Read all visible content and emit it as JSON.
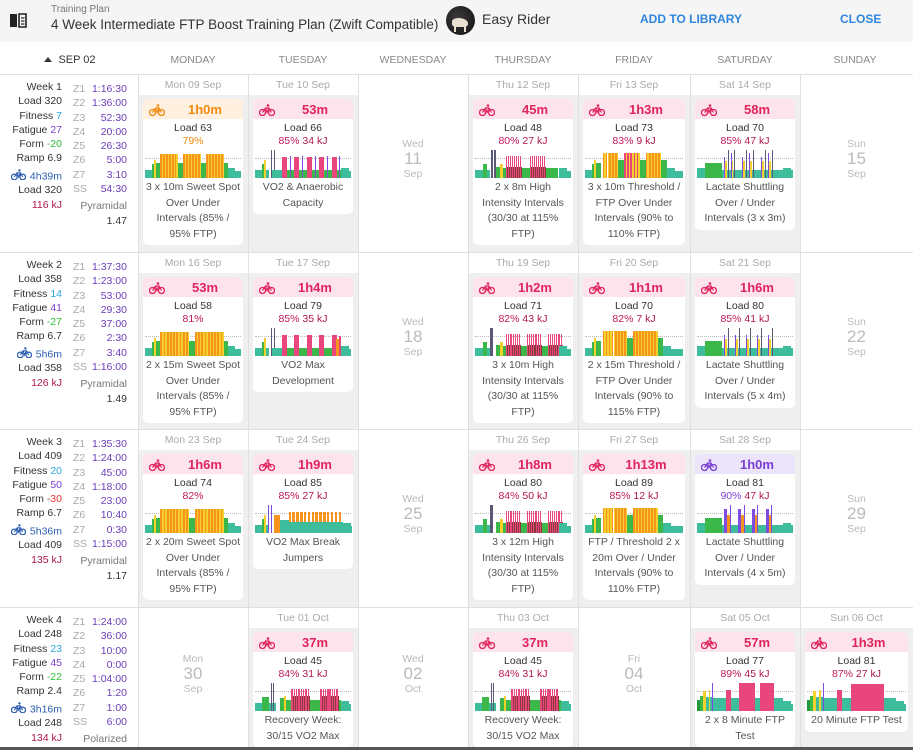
{
  "header": {
    "subtitle": "Training Plan",
    "title": "4 Week Intermediate FTP Boost Training Plan (Zwift Compatible)",
    "user": "Easy Rider",
    "add_label": "ADD TO LIBRARY",
    "close_label": "CLOSE"
  },
  "columns": {
    "week_start": "SEP 02",
    "days": [
      "MONDAY",
      "TUESDAY",
      "WEDNESDAY",
      "THURSDAY",
      "FRIDAY",
      "SATURDAY",
      "SUNDAY"
    ]
  },
  "colors": {
    "accent": "#2f86de",
    "pink": "#e0245e",
    "orange": "#f08a10",
    "purple": "#7b3fd0",
    "zone_value": "#6a3db8"
  },
  "weeks": [
    {
      "label": "Week 1",
      "load": "Load 320",
      "fitness_label": "Fitness",
      "fitness": "7",
      "fatigue_label": "Fatigue",
      "fatigue": "27",
      "form_label": "Form",
      "form": "-20",
      "ramp": "Ramp 6.9",
      "ride_time": "4h39m",
      "ride_load": "Load 320",
      "kj": "116 kJ",
      "zones": [
        [
          "Z1",
          "1:16:30"
        ],
        [
          "Z2",
          "1:36:00"
        ],
        [
          "Z3",
          "52:30"
        ],
        [
          "Z4",
          "20:00"
        ],
        [
          "Z5",
          "26:30"
        ],
        [
          "Z6",
          "5:00"
        ],
        [
          "Z7",
          "3:10"
        ],
        [
          "SS",
          "54:30"
        ]
      ],
      "dist_label": "Pyramidal",
      "dist_value": "1.47",
      "days": [
        {
          "date": "Mon 09 Sep",
          "theme": "orange",
          "duration": "1h0m",
          "load": "Load 63",
          "pct": "79%",
          "kj": "",
          "desc": "3 x 10m Sweet Spot Over Under Intervals (85% / 95% FTP)",
          "profile": "sweetspot3"
        },
        {
          "date": "Tue 10 Sep",
          "theme": "pink",
          "duration": "53m",
          "load": "Load 66",
          "pct": "85%",
          "kj": "34 kJ",
          "desc": "VO2 & Anaerobic Capacity",
          "profile": "vo2a"
        },
        {
          "empty": true,
          "dow": "Wed",
          "num": "11",
          "mon": "Sep"
        },
        {
          "date": "Thu 12 Sep",
          "theme": "pink",
          "duration": "45m",
          "load": "Load 48",
          "pct": "80%",
          "kj": "27 kJ",
          "desc": "2 x 8m High Intensity Intervals (30/30 at 115% FTP)",
          "profile": "hii2"
        },
        {
          "date": "Fri 13 Sep",
          "theme": "pink",
          "duration": "1h3m",
          "load": "Load 73",
          "pct": "83%",
          "kj": "9 kJ",
          "desc": "3 x 10m Threshold / FTP Over Under Intervals (90% to 110% FTP)",
          "profile": "thr3"
        },
        {
          "date": "Sat 14 Sep",
          "theme": "pink",
          "duration": "58m",
          "load": "Load 70",
          "pct": "85%",
          "kj": "47 kJ",
          "desc": "Lactate Shuttling Over / Under Intervals (3 x 3m)",
          "profile": "lact3"
        },
        {
          "empty": true,
          "dow": "Sun",
          "num": "15",
          "mon": "Sep"
        }
      ]
    },
    {
      "label": "Week 2",
      "load": "Load 358",
      "fitness_label": "Fitness",
      "fitness": "14",
      "fatigue_label": "Fatigue",
      "fatigue": "41",
      "form_label": "Form",
      "form": "-27",
      "ramp": "Ramp 6.7",
      "ride_time": "5h6m",
      "ride_load": "Load 358",
      "kj": "126 kJ",
      "zones": [
        [
          "Z1",
          "1:37:30"
        ],
        [
          "Z2",
          "1:23:00"
        ],
        [
          "Z3",
          "53:00"
        ],
        [
          "Z4",
          "29:30"
        ],
        [
          "Z5",
          "37:00"
        ],
        [
          "Z6",
          "2:30"
        ],
        [
          "Z7",
          "3:40"
        ],
        [
          "SS",
          "1:16:00"
        ]
      ],
      "dist_label": "Pyramidal",
      "dist_value": "1.49",
      "days": [
        {
          "date": "Mon 16 Sep",
          "theme": "pink",
          "duration": "53m",
          "load": "Load 58",
          "pct": "81%",
          "kj": "",
          "desc": "2 x 15m Sweet Spot Over Under Intervals (85% / 95% FTP)",
          "profile": "sweetspot2"
        },
        {
          "date": "Tue 17 Sep",
          "theme": "pink",
          "duration": "1h4m",
          "load": "Load 79",
          "pct": "85%",
          "kj": "35 kJ",
          "desc": "VO2 Max Development",
          "profile": "vo2dev"
        },
        {
          "empty": true,
          "dow": "Wed",
          "num": "18",
          "mon": "Sep"
        },
        {
          "date": "Thu 19 Sep",
          "theme": "pink",
          "duration": "1h2m",
          "load": "Load 71",
          "pct": "82%",
          "kj": "43 kJ",
          "desc": "3 x 10m High Intensity Intervals (30/30 at 115% FTP)",
          "profile": "hii3"
        },
        {
          "date": "Fri 20 Sep",
          "theme": "pink",
          "duration": "1h1m",
          "load": "Load 70",
          "pct": "82%",
          "kj": "7 kJ",
          "desc": "2 x 15m Threshold / FTP Over Under Intervals (90% to 115% FTP)",
          "profile": "thr2"
        },
        {
          "date": "Sat 21 Sep",
          "theme": "pink",
          "duration": "1h6m",
          "load": "Load 80",
          "pct": "85%",
          "kj": "41 kJ",
          "desc": "Lactate Shuttling Over / Under Intervals (5 x 4m)",
          "profile": "lact5"
        },
        {
          "empty": true,
          "dow": "Sun",
          "num": "22",
          "mon": "Sep"
        }
      ]
    },
    {
      "label": "Week 3",
      "load": "Load 409",
      "fitness_label": "Fitness",
      "fitness": "20",
      "fatigue_label": "Fatigue",
      "fatigue": "50",
      "form_label": "Form",
      "form": "-30",
      "ramp": "Ramp 6.7",
      "ride_time": "5h36m",
      "ride_load": "Load 409",
      "kj": "135 kJ",
      "zones": [
        [
          "Z1",
          "1:35:30"
        ],
        [
          "Z2",
          "1:24:00"
        ],
        [
          "Z3",
          "45:00"
        ],
        [
          "Z4",
          "1:18:00"
        ],
        [
          "Z5",
          "23:00"
        ],
        [
          "Z6",
          "10:40"
        ],
        [
          "Z7",
          "0:30"
        ],
        [
          "SS",
          "1:15:00"
        ]
      ],
      "dist_label": "Pyramidal",
      "dist_value": "1.17",
      "days": [
        {
          "date": "Mon 23 Sep",
          "theme": "pink",
          "duration": "1h6m",
          "load": "Load 74",
          "pct": "82%",
          "kj": "",
          "desc": "2 x 20m Sweet Spot Over Under Intervals (85% / 95% FTP)",
          "profile": "sweetspot2"
        },
        {
          "date": "Tue 24 Sep",
          "theme": "pink",
          "duration": "1h9m",
          "load": "Load 85",
          "pct": "85%",
          "kj": "27 kJ",
          "desc": "VO2 Max Break Jumpers",
          "profile": "breakjump"
        },
        {
          "empty": true,
          "dow": "Wed",
          "num": "25",
          "mon": "Sep"
        },
        {
          "date": "Thu 26 Sep",
          "theme": "pink",
          "duration": "1h8m",
          "load": "Load 80",
          "pct": "84%",
          "kj": "50 kJ",
          "desc": "3 x 12m High Intensity Intervals (30/30 at 115% FTP)",
          "profile": "hii3"
        },
        {
          "date": "Fri 27 Sep",
          "theme": "pink",
          "duration": "1h13m",
          "load": "Load 89",
          "pct": "85%",
          "kj": "12 kJ",
          "desc": "FTP / Threshold 2 x 20m Over / Under Intervals (90% to 110% FTP)",
          "profile": "thr2"
        },
        {
          "date": "Sat 28 Sep",
          "theme": "purple",
          "duration": "1h0m",
          "load": "Load 81",
          "pct": "90%",
          "kj": "47 kJ",
          "desc": "Lactate Shuttling Over / Under Intervals (4 x 5m)",
          "profile": "lact4"
        },
        {
          "empty": true,
          "dow": "Sun",
          "num": "29",
          "mon": "Sep"
        }
      ]
    },
    {
      "label": "Week 4",
      "load": "Load 248",
      "fitness_label": "Fitness",
      "fitness": "23",
      "fatigue_label": "Fatigue",
      "fatigue": "45",
      "form_label": "Form",
      "form": "-22",
      "ramp": "Ramp 2.4",
      "ride_time": "3h16m",
      "ride_load": "Load 248",
      "kj": "134 kJ",
      "zones": [
        [
          "Z1",
          "1:24:00"
        ],
        [
          "Z2",
          "36:00"
        ],
        [
          "Z3",
          "10:00"
        ],
        [
          "Z4",
          "0:00"
        ],
        [
          "Z5",
          "1:04:00"
        ],
        [
          "Z6",
          "1:20"
        ],
        [
          "Z7",
          "1:00"
        ],
        [
          "SS",
          "6:00"
        ]
      ],
      "dist_label": "Polarized",
      "dist_value": "",
      "days": [
        {
          "empty": true,
          "dow": "Mon",
          "num": "30",
          "mon": "Sep"
        },
        {
          "date": "Tue 01 Oct",
          "theme": "pink",
          "duration": "37m",
          "load": "Load 45",
          "pct": "84%",
          "kj": "31 kJ",
          "desc": "Recovery Week: 30/15 VO2 Max",
          "profile": "recov"
        },
        {
          "empty": true,
          "dow": "Wed",
          "num": "02",
          "mon": "Oct"
        },
        {
          "date": "Thu 03 Oct",
          "theme": "pink",
          "duration": "37m",
          "load": "Load 45",
          "pct": "84%",
          "kj": "31 kJ",
          "desc": "Recovery Week: 30/15 VO2 Max",
          "profile": "recov"
        },
        {
          "empty": true,
          "dow": "Fri",
          "num": "04",
          "mon": "Oct"
        },
        {
          "date": "Sat 05 Oct",
          "theme": "pink",
          "duration": "57m",
          "load": "Load 77",
          "pct": "89%",
          "kj": "45 kJ",
          "desc": "2 x 8 Minute FTP Test",
          "profile": "ftp8"
        },
        {
          "date": "Sun 06 Oct",
          "theme": "pink",
          "duration": "1h3m",
          "load": "Load 81",
          "pct": "87%",
          "kj": "27 kJ",
          "desc": "20 Minute FTP Test",
          "profile": "ftp20"
        }
      ]
    }
  ]
}
